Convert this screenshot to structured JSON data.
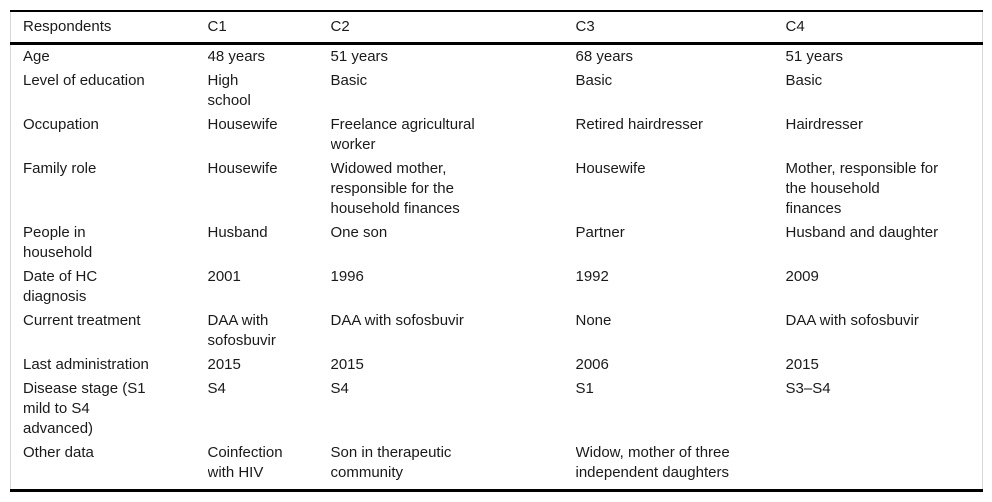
{
  "table_title": "Respondent characteristics table",
  "colors": {
    "text": "#1a1a1a",
    "rule": "#000000",
    "frame_line": "#d8d8d8",
    "background": "#ffffff"
  },
  "header": {
    "cells": [
      "Respondents",
      "C1",
      "C2",
      "C3",
      "C4"
    ]
  },
  "rows": [
    {
      "cells": [
        "Age",
        "48 years",
        "51 years",
        "68 years",
        "51 years"
      ]
    },
    {
      "cells": [
        "Level of education",
        "High\nschool",
        "Basic",
        "Basic",
        "Basic"
      ]
    },
    {
      "cells": [
        "Occupation",
        "Housewife",
        "Freelance agricultural\nworker",
        "Retired hairdresser",
        "Hairdresser"
      ]
    },
    {
      "cells": [
        "Family role",
        "Housewife",
        "Widowed mother,\nresponsible for the\nhousehold finances",
        "Housewife",
        "Mother, responsible for\nthe household\nfinances"
      ]
    },
    {
      "cells": [
        "People in\nhousehold",
        "Husband",
        "One son",
        "Partner",
        "Husband and daughter"
      ]
    },
    {
      "cells": [
        "Date of HC\ndiagnosis",
        "2001",
        "1996",
        "1992",
        "2009"
      ]
    },
    {
      "cells": [
        "Current treatment",
        "DAA with\nsofosbuvir",
        "DAA with sofosbuvir",
        "None",
        "DAA with sofosbuvir"
      ]
    },
    {
      "cells": [
        "Last administration",
        "2015",
        "2015",
        "2006",
        "2015"
      ]
    },
    {
      "cells": [
        "Disease stage (S1\nmild to S4\nadvanced)",
        "S4",
        "S4",
        "S1",
        "S3–S4"
      ]
    },
    {
      "cells": [
        "Other data",
        "Coinfection\nwith HIV",
        "Son in therapeutic\ncommunity",
        "Widow, mother of three\nindependent daughters",
        ""
      ]
    }
  ]
}
